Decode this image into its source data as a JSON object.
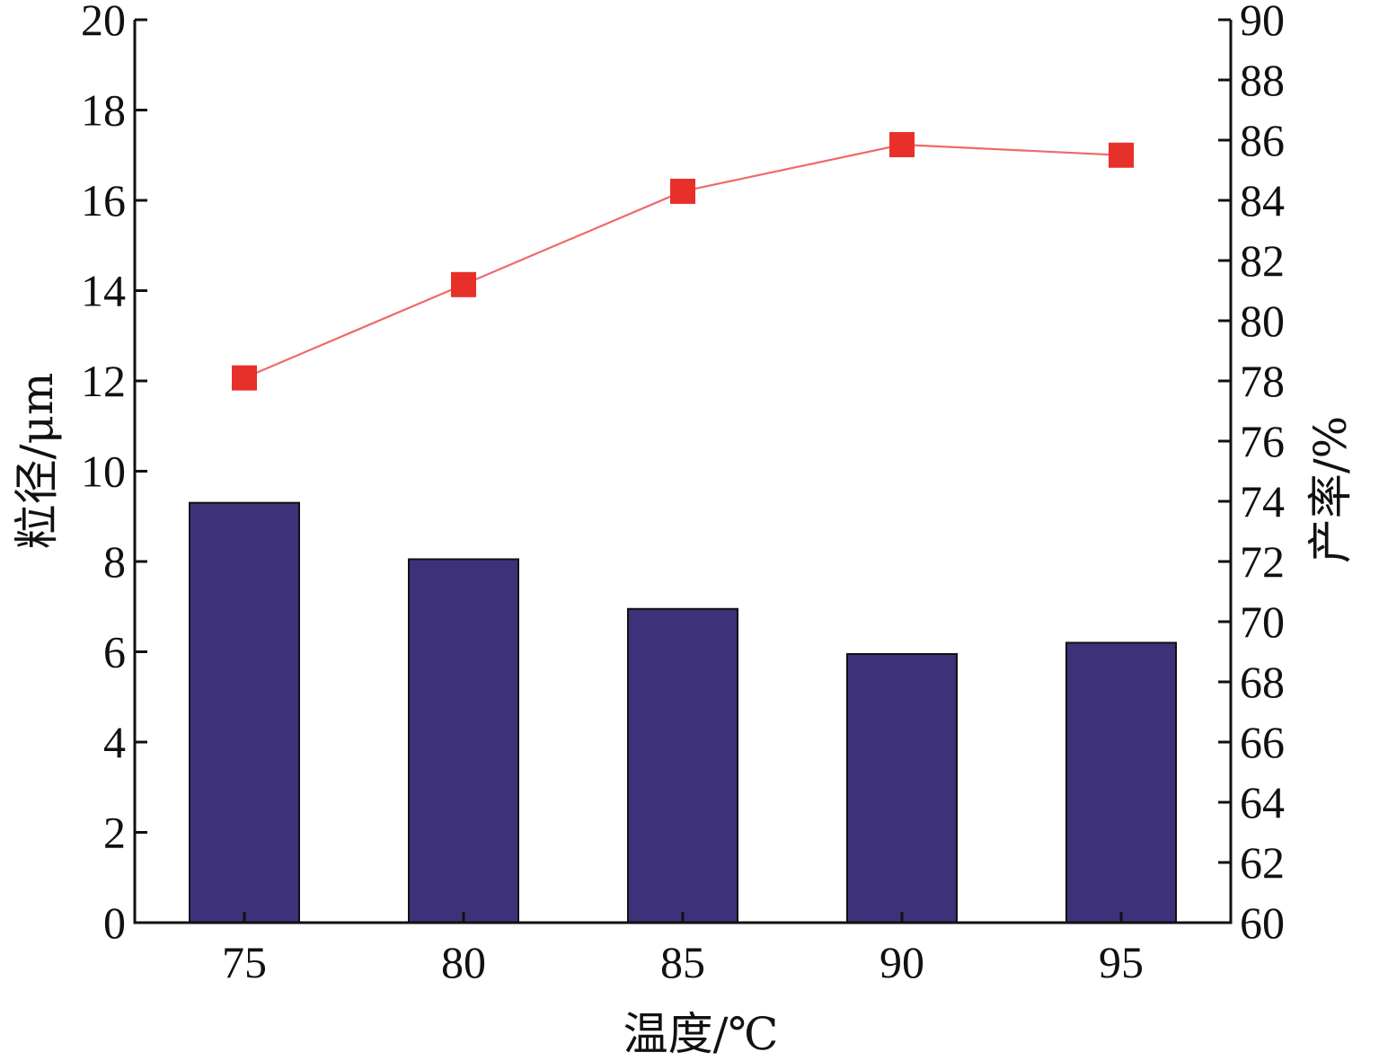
{
  "chart_data": {
    "type": "bar",
    "title": "",
    "xlabel": "温度/℃",
    "categories": [
      "75",
      "80",
      "85",
      "90",
      "95"
    ],
    "y_left": {
      "label": "粒径/μm",
      "lim": [
        0,
        20
      ],
      "ticks": [
        "0",
        "2",
        "4",
        "6",
        "8",
        "10",
        "12",
        "14",
        "16",
        "18",
        "20"
      ]
    },
    "y_right": {
      "label": "产率/%",
      "lim": [
        60,
        90
      ],
      "ticks": [
        "60",
        "62",
        "64",
        "66",
        "68",
        "70",
        "72",
        "74",
        "76",
        "78",
        "80",
        "82",
        "84",
        "86",
        "88",
        "90"
      ]
    },
    "series": [
      {
        "type": "bar",
        "axis": "left",
        "values": [
          9.3,
          8.05,
          6.95,
          5.95,
          6.2
        ],
        "color": "#3d3279"
      },
      {
        "type": "line",
        "axis": "right",
        "marker": "square",
        "values": [
          78.1,
          81.2,
          84.3,
          85.85,
          85.5
        ],
        "color": "#e8302b"
      }
    ],
    "grid": false,
    "legend": "none"
  }
}
